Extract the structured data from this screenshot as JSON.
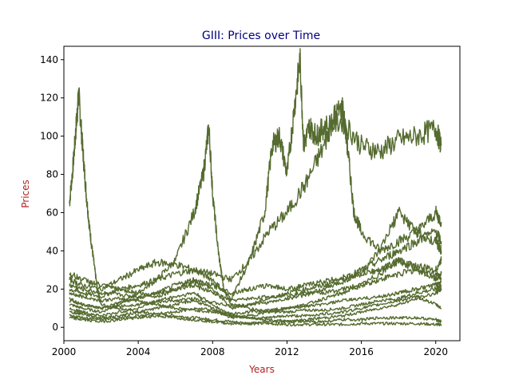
{
  "chart_data": {
    "type": "line",
    "title": "GIII: Prices over Time",
    "xlabel": "Years",
    "ylabel": "Prices",
    "title_color": "#000080",
    "label_color": "#b22222",
    "line_color": "#556b2f",
    "xlim": [
      2000.0,
      2021.3
    ],
    "ylim": [
      -7,
      147
    ],
    "xticks": [
      2000,
      2004,
      2008,
      2012,
      2016,
      2020
    ],
    "yticks": [
      0,
      20,
      40,
      60,
      80,
      100,
      120,
      140
    ],
    "grid": false,
    "series": [
      {
        "x": [
          2000.3,
          2000.5,
          2000.7,
          2000.8,
          2001.0,
          2001.2,
          2001.4,
          2001.6,
          2001.8,
          2002.0,
          2003,
          2004,
          2005,
          2006,
          2007,
          2008,
          2009,
          2010,
          2011,
          2012,
          2013,
          2014,
          2015,
          2016,
          2017,
          2018,
          2019,
          2020,
          2020.3
        ],
        "values": [
          65,
          85,
          110,
          122,
          95,
          70,
          50,
          35,
          20,
          12,
          10,
          8,
          7,
          6,
          5,
          4,
          3,
          2,
          2,
          1.5,
          1.5,
          1.5,
          1.5,
          2,
          2,
          2,
          2,
          1.5,
          1.5
        ]
      },
      {
        "x": [
          2000.3,
          2001,
          2002,
          2003,
          2004,
          2005,
          2006,
          2007,
          2007.5,
          2007.8,
          2008,
          2008.3,
          2008.6,
          2009,
          2010,
          2011,
          2012,
          2013,
          2014,
          2015,
          2016,
          2017,
          2018,
          2019,
          2020,
          2020.3
        ],
        "values": [
          12,
          10,
          8,
          12,
          18,
          25,
          35,
          60,
          80,
          105,
          70,
          40,
          20,
          12,
          10,
          8,
          8,
          9,
          9,
          10,
          12,
          14,
          15,
          18,
          20,
          22
        ]
      },
      {
        "x": [
          2000.3,
          2001,
          2002,
          2003,
          2004,
          2005,
          2006,
          2007,
          2008,
          2009,
          2010,
          2010.8,
          2011.2,
          2011.6,
          2012,
          2012.4,
          2012.7,
          2012.9,
          2013.2,
          2013.6,
          2014,
          2015,
          2016,
          2017,
          2018,
          2019,
          2020,
          2020.3
        ],
        "values": [
          20,
          18,
          16,
          20,
          22,
          25,
          28,
          30,
          25,
          15,
          35,
          60,
          95,
          100,
          80,
          115,
          140,
          95,
          105,
          100,
          105,
          108,
          95,
          92,
          98,
          100,
          104,
          95
        ]
      },
      {
        "x": [
          2000.3,
          2001,
          2002,
          2003,
          2004,
          2005,
          2006,
          2007,
          2008,
          2009,
          2010,
          2011,
          2012,
          2013,
          2014,
          2014.5,
          2015,
          2015.3,
          2015.6,
          2016,
          2017,
          2018,
          2019,
          2020,
          2020.3
        ],
        "values": [
          25,
          22,
          20,
          25,
          30,
          34,
          33,
          30,
          28,
          25,
          35,
          50,
          60,
          75,
          95,
          110,
          115,
          90,
          60,
          50,
          40,
          45,
          50,
          60,
          55
        ]
      },
      {
        "x": [
          2000.3,
          2001,
          2002,
          2003,
          2004,
          2005,
          2006,
          2007,
          2008,
          2009,
          2010,
          2011,
          2012,
          2013,
          2014,
          2015,
          2016,
          2017,
          2018,
          2019,
          2020,
          2020.3
        ],
        "values": [
          15,
          12,
          10,
          13,
          15,
          18,
          22,
          25,
          20,
          10,
          12,
          15,
          18,
          20,
          22,
          25,
          30,
          35,
          40,
          45,
          50,
          45
        ]
      },
      {
        "x": [
          2000.3,
          2001,
          2002,
          2003,
          2004,
          2005,
          2006,
          2007,
          2008,
          2009,
          2010,
          2011,
          2012,
          2013,
          2014,
          2015,
          2016,
          2017,
          2018,
          2019,
          2020,
          2020.3
        ],
        "values": [
          8,
          7,
          5,
          6,
          8,
          10,
          12,
          14,
          10,
          5,
          6,
          8,
          10,
          12,
          15,
          18,
          22,
          28,
          35,
          30,
          25,
          28
        ]
      },
      {
        "x": [
          2000.3,
          2001,
          2002,
          2003,
          2004,
          2005,
          2006,
          2007,
          2008,
          2009,
          2010,
          2011,
          2012,
          2013,
          2014,
          2015,
          2016,
          2017,
          2018,
          2019,
          2020,
          2020.3
        ],
        "values": [
          5,
          4,
          3,
          4,
          5,
          6,
          5,
          4,
          3,
          2,
          2,
          3,
          3,
          4,
          5,
          6,
          8,
          10,
          12,
          15,
          18,
          20
        ]
      },
      {
        "x": [
          2000.3,
          2001,
          2002,
          2003,
          2004,
          2005,
          2006,
          2007,
          2008,
          2009,
          2010,
          2011,
          2012,
          2013,
          2014,
          2015,
          2016,
          2017,
          2018,
          2019,
          2020,
          2020.3
        ],
        "values": [
          18,
          16,
          14,
          15,
          14,
          12,
          10,
          9,
          8,
          6,
          5,
          5,
          6,
          6,
          7,
          8,
          10,
          12,
          14,
          16,
          12,
          10
        ]
      },
      {
        "x": [
          2000.3,
          2001,
          2002,
          2003,
          2004,
          2005,
          2006,
          2007,
          2008,
          2009,
          2010,
          2011,
          2012,
          2013,
          2014,
          2015,
          2016,
          2017,
          2018,
          2019,
          2020,
          2020.3
        ],
        "values": [
          28,
          25,
          22,
          20,
          18,
          16,
          20,
          24,
          22,
          18,
          20,
          22,
          20,
          22,
          24,
          26,
          28,
          30,
          35,
          32,
          30,
          35
        ]
      },
      {
        "x": [
          2000.3,
          2001,
          2002,
          2003,
          2004,
          2005,
          2006,
          2007,
          2008,
          2009,
          2010,
          2011,
          2012,
          2013,
          2014,
          2015,
          2016,
          2017,
          2018,
          2019,
          2020,
          2020.3
        ],
        "values": [
          10,
          8,
          6,
          8,
          10,
          14,
          16,
          18,
          12,
          6,
          5,
          4,
          3,
          3,
          3,
          4,
          4,
          5,
          5,
          5,
          4,
          3
        ]
      },
      {
        "x": [
          2000.3,
          2001,
          2002,
          2003,
          2004,
          2005,
          2006,
          2007,
          2008,
          2009,
          2010,
          2011,
          2012,
          2013,
          2014,
          2015,
          2016,
          2017,
          2018,
          2019,
          2020,
          2020.3
        ],
        "values": [
          22,
          20,
          18,
          17,
          16,
          18,
          20,
          22,
          18,
          14,
          15,
          16,
          17,
          18,
          18,
          20,
          22,
          25,
          28,
          30,
          28,
          26
        ]
      },
      {
        "x": [
          2000.3,
          2001,
          2002,
          2003,
          2004,
          2005,
          2006,
          2007,
          2008,
          2009,
          2010,
          2011,
          2012,
          2013,
          2014,
          2015,
          2016,
          2017,
          2018,
          2019,
          2020,
          2020.3
        ],
        "values": [
          14,
          12,
          10,
          11,
          12,
          13,
          14,
          15,
          13,
          11,
          12,
          13,
          15,
          17,
          20,
          24,
          28,
          40,
          60,
          50,
          45,
          40
        ]
      },
      {
        "x": [
          2000.3,
          2001,
          2002,
          2003,
          2004,
          2005,
          2006,
          2007,
          2008,
          2009,
          2010,
          2011,
          2012,
          2013,
          2014,
          2015,
          2016,
          2017,
          2018,
          2019,
          2020,
          2020.3
        ],
        "values": [
          6,
          5,
          4,
          5,
          6,
          7,
          8,
          10,
          9,
          7,
          8,
          9,
          10,
          11,
          12,
          14,
          15,
          16,
          18,
          20,
          22,
          24
        ]
      }
    ]
  }
}
